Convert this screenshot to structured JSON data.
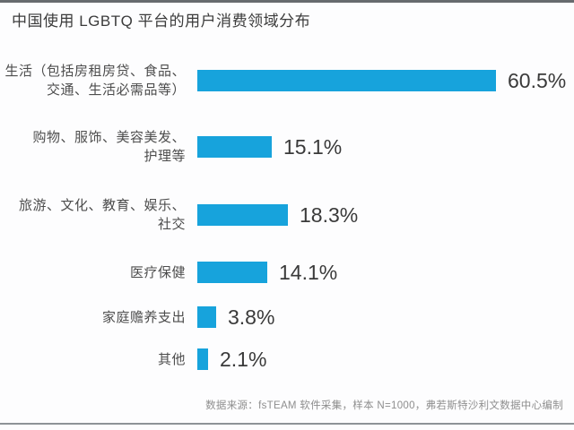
{
  "title": "中国使用 LGBTQ 平台的用户消费领域分布",
  "footer": {
    "source": "数据来源：fsTEAM 软件采集，样本 N=1000，弗若斯特沙利文数据中心编制"
  },
  "colors": {
    "bar": "#17a3dc",
    "title_text": "#3b3b3b",
    "label_text": "#4d4d4d",
    "value_text": "#3a3a3a",
    "footer_text": "#8e8e8e",
    "top_band": "#676b6e",
    "bottom_line": "#8e9397",
    "background": "#fdfdfe"
  },
  "chart_data": {
    "type": "bar",
    "orientation": "horizontal",
    "title": "中国使用 LGBTQ 平台的用户消费领域分布",
    "unit": "%",
    "categories": [
      "生活（包括房租房贷、食品、交通、生活必需品等）",
      "购物、服饰、美容美发、护理等",
      "旅游、文化、教育、娱乐、社交",
      "医疗保健",
      "家庭赡养支出",
      "其他"
    ],
    "category_lines": [
      [
        "生活（包括房租房贷、食品、",
        "交通、生活必需品等）"
      ],
      [
        "购物、服饰、美容美发、",
        "护理等"
      ],
      [
        "旅游、文化、教育、娱乐、",
        "社交"
      ],
      [
        "医疗保健"
      ],
      [
        "家庭赡养支出"
      ],
      [
        "其他"
      ]
    ],
    "values": [
      60.5,
      15.1,
      18.3,
      14.1,
      3.8,
      2.1
    ],
    "value_labels": [
      "60.5%",
      "15.1%",
      "18.3%",
      "14.1%",
      "3.8%",
      "2.1%"
    ],
    "xlim": [
      0,
      65
    ],
    "grid": false,
    "legend": false,
    "value_label_position": "right-of-bar",
    "source_note": "数据来源：fsTEAM 软件采集，样本 N=1000，弗若斯特沙利文数据中心编制"
  }
}
